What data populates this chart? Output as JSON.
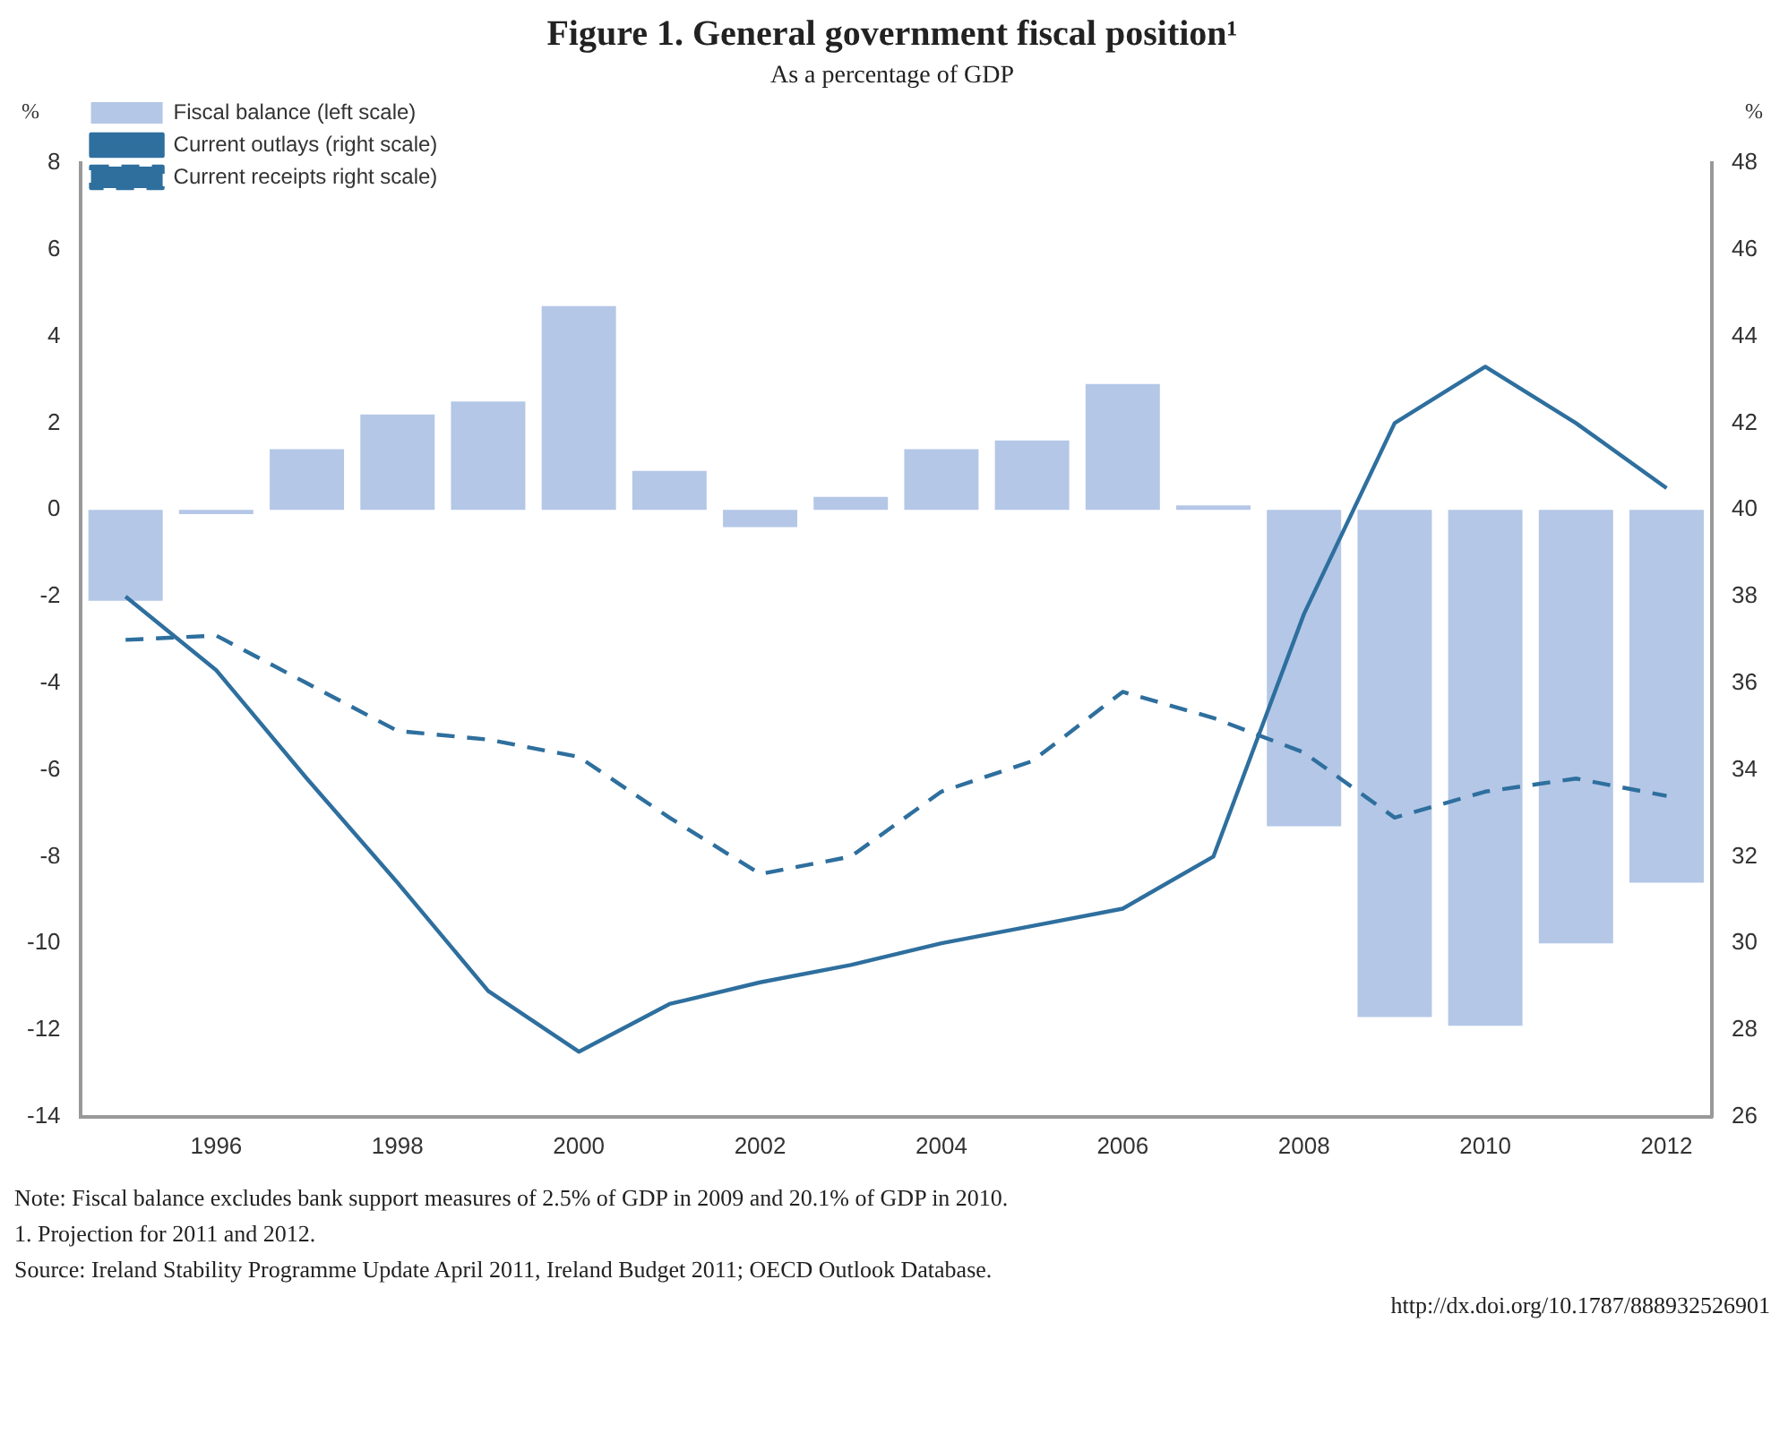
{
  "chart_data": {
    "type": "bar",
    "title": "Figure 1. General government fiscal position¹",
    "subtitle": "As a percentage of GDP",
    "ylabel": "%",
    "y2label": "%",
    "categories": [
      null,
      "1996",
      null,
      "1998",
      null,
      "2000",
      null,
      "2002",
      null,
      "2004",
      null,
      "2006",
      null,
      "2008",
      null,
      "2010",
      null,
      "2012"
    ],
    "series": [
      {
        "name": "Fiscal balance (left scale)",
        "color": "#b4c7e7",
        "values": [
          -2.1,
          -0.1,
          1.4,
          2.2,
          2.5,
          4.7,
          0.9,
          -0.4,
          0.3,
          1.4,
          1.6,
          2.9,
          0.1,
          -7.3,
          -11.7,
          -11.9,
          -10.0,
          -8.6
        ]
      },
      {
        "name": "Current outlays (right scale)",
        "type": "line",
        "axis": "y2",
        "color": "#2e6f9e",
        "line_style": "solid",
        "values": [
          38.0,
          36.3,
          33.8,
          31.4,
          28.9,
          27.5,
          28.6,
          29.1,
          29.5,
          30.0,
          30.4,
          30.8,
          32.0,
          37.6,
          42.0,
          43.3,
          42.0,
          40.5
        ]
      },
      {
        "name": "Current receipts right scale)",
        "type": "line",
        "axis": "y2",
        "color": "#2e6f9e",
        "line_style": "dashed",
        "values": [
          37.0,
          37.1,
          36.0,
          34.9,
          34.7,
          34.3,
          32.9,
          31.6,
          32.0,
          33.5,
          34.2,
          35.8,
          35.2,
          34.4,
          32.9,
          33.5,
          33.8,
          33.4
        ]
      }
    ],
    "ylim": [
      -14,
      8
    ],
    "yticks": [
      -14,
      -12,
      -10,
      -8,
      -6,
      -4,
      -2,
      0,
      2,
      4,
      6,
      8
    ],
    "y2lim": [
      26,
      48
    ],
    "y2ticks": [
      26,
      28,
      30,
      32,
      34,
      36,
      38,
      40,
      42,
      44,
      46,
      48
    ],
    "grid": false,
    "legend": "top left",
    "marker": "none",
    "annotations": [
      "Note: Fiscal balance excludes bank support measures of 2.5% of GDP in 2009 and 20.1% of GDP in 2010.",
      "1. Projection for 2011 and 2012.",
      "Source: Ireland Stability Programme Update April 2011, Ireland Budget 2011; OECD Outlook Database.",
      "http://dx.doi.org/10.1787/888932526901"
    ]
  }
}
